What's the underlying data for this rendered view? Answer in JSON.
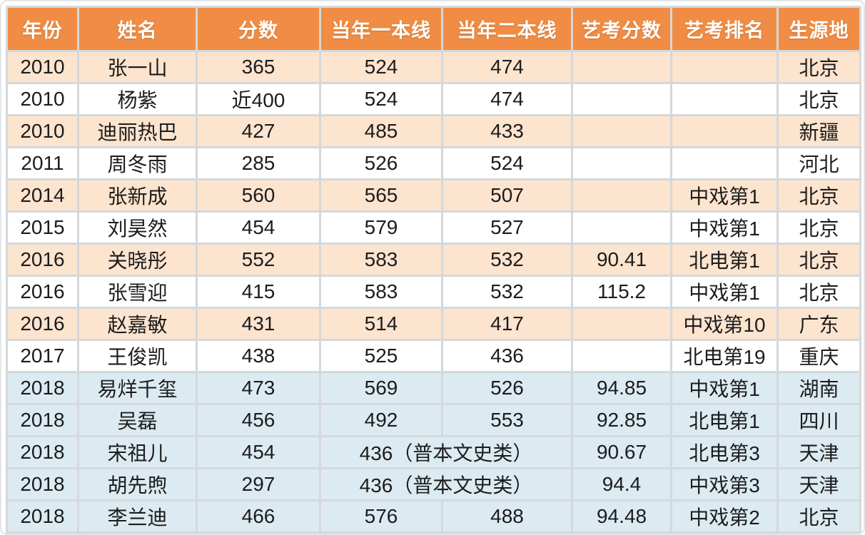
{
  "chart_data": {
    "type": "table",
    "columns": [
      "年份",
      "姓名",
      "分数",
      "当年一本线",
      "当年二本线",
      "艺考分数",
      "艺考排名",
      "生源地"
    ],
    "rows": [
      {
        "cells": [
          "2010",
          "张一山",
          "365",
          "524",
          "474",
          "",
          "",
          "北京"
        ],
        "bg": "orange"
      },
      {
        "cells": [
          "2010",
          "杨紫",
          "近400",
          "524",
          "474",
          "",
          "",
          "北京"
        ],
        "bg": "white"
      },
      {
        "cells": [
          "2010",
          "迪丽热巴",
          "427",
          "485",
          "433",
          "",
          "",
          "新疆"
        ],
        "bg": "orange"
      },
      {
        "cells": [
          "2011",
          "周冬雨",
          "285",
          "526",
          "524",
          "",
          "",
          "河北"
        ],
        "bg": "white"
      },
      {
        "cells": [
          "2014",
          "张新成",
          "560",
          "565",
          "507",
          "",
          "中戏第1",
          "北京"
        ],
        "bg": "orange"
      },
      {
        "cells": [
          "2015",
          "刘昊然",
          "454",
          "579",
          "527",
          "",
          "中戏第1",
          "北京"
        ],
        "bg": "white"
      },
      {
        "cells": [
          "2016",
          "关晓彤",
          "552",
          "583",
          "532",
          "90.41",
          "北电第1",
          "北京"
        ],
        "bg": "orange"
      },
      {
        "cells": [
          "2016",
          "张雪迎",
          "415",
          "583",
          "532",
          "115.2",
          "中戏第1",
          "北京"
        ],
        "bg": "white"
      },
      {
        "cells": [
          "2016",
          "赵嘉敏",
          "431",
          "514",
          "417",
          "",
          "中戏第10",
          "广东"
        ],
        "bg": "orange"
      },
      {
        "cells": [
          "2017",
          "王俊凯",
          "438",
          "525",
          "436",
          "",
          "北电第19",
          "重庆"
        ],
        "bg": "white"
      },
      {
        "cells": [
          "2018",
          "易烊千玺",
          "473",
          "569",
          "526",
          "94.85",
          "中戏第1",
          "湖南"
        ],
        "bg": "blue"
      },
      {
        "cells": [
          "2018",
          "吴磊",
          "456",
          "492",
          "553",
          "92.85",
          "北电第1",
          "四川"
        ],
        "bg": "blue"
      },
      {
        "cells": [
          "2018",
          "宋祖儿",
          "454",
          {
            "text": "436（普本文史类）",
            "colspan": 2
          },
          "90.67",
          "北电第3",
          "天津"
        ],
        "bg": "blue"
      },
      {
        "cells": [
          "2018",
          "胡先煦",
          "297",
          {
            "text": "436（普本文史类）",
            "colspan": 2
          },
          "94.4",
          "中戏第3",
          "天津"
        ],
        "bg": "blue"
      },
      {
        "cells": [
          "2018",
          "李兰迪",
          "466",
          "576",
          "488",
          "94.48",
          "中戏第2",
          "北京"
        ],
        "bg": "blue"
      }
    ]
  },
  "colors": {
    "header_bg": "#F08C44",
    "header_text": "#FFFFFF",
    "row_orange": "#FCE4CF",
    "row_white": "#FFFFFF",
    "row_blue": "#DCEBF1",
    "grid_line": "#D5D8DA",
    "text": "#1C1C1C"
  }
}
